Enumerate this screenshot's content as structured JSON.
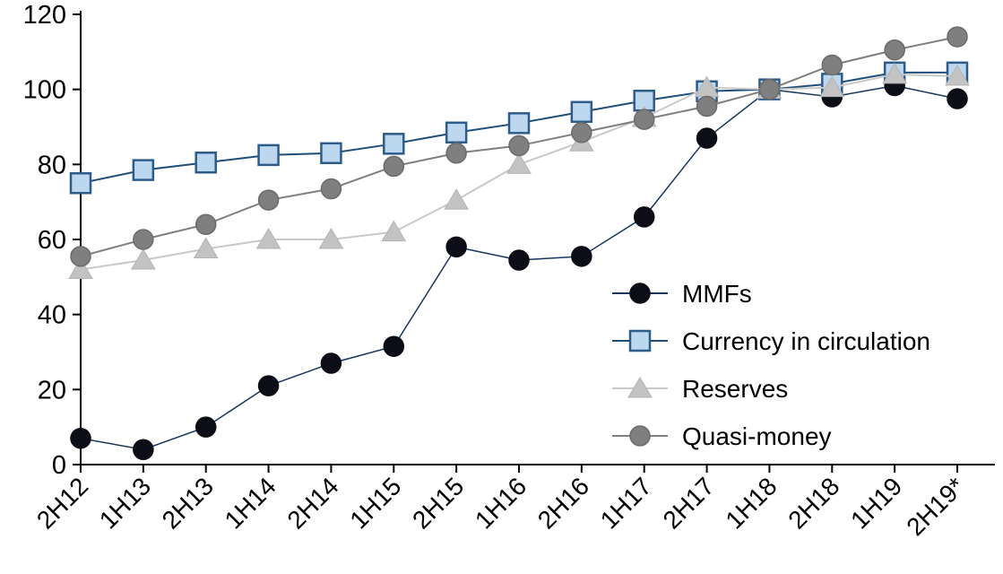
{
  "chart_data": {
    "type": "line",
    "title": "",
    "xlabel": "",
    "ylabel": "",
    "categories": [
      "2H12",
      "1H13",
      "2H13",
      "1H14",
      "2H14",
      "1H15",
      "2H15",
      "1H16",
      "2H16",
      "1H17",
      "2H17",
      "1H18",
      "2H18",
      "1H19",
      "2H19*"
    ],
    "series": [
      {
        "name": "MMFs",
        "marker": "circle",
        "line_color": "#17375e",
        "marker_fill": "#0d0d17",
        "marker_stroke": "#0d0d17",
        "values": [
          7,
          4,
          10,
          21,
          27,
          31.5,
          58,
          54.5,
          55.5,
          66,
          87,
          100,
          98,
          101,
          97.5
        ]
      },
      {
        "name": "Currency in circulation",
        "marker": "square",
        "line_color": "#1f4e79",
        "marker_fill": "#bdd7ee",
        "marker_stroke": "#2e5c8a",
        "values": [
          75,
          78.5,
          80.5,
          82.5,
          83,
          85.5,
          88.5,
          91,
          94,
          97,
          99.5,
          100,
          101.5,
          104.5,
          104.5
        ]
      },
      {
        "name": "Reserves",
        "marker": "triangle",
        "line_color": "#c9c9c9",
        "marker_fill": "#c3c3c3",
        "marker_stroke": "#b3b3b3",
        "values": [
          52,
          54.5,
          57.5,
          60,
          60,
          62,
          70.5,
          80,
          86,
          92.5,
          100.5,
          100,
          100.5,
          104,
          103.5
        ]
      },
      {
        "name": "Quasi-money",
        "marker": "circle",
        "line_color": "#7f7f7f",
        "marker_fill": "#7f7f7f",
        "marker_stroke": "#6b6b6b",
        "values": [
          55.5,
          60,
          64,
          70.5,
          73.5,
          79.5,
          83,
          85,
          88.5,
          92,
          95.5,
          100,
          106.5,
          110.5,
          114
        ]
      }
    ],
    "ylim": [
      0,
      120
    ],
    "yticks": [
      0,
      20,
      40,
      60,
      80,
      100,
      120
    ],
    "grid": false,
    "legend_position": "inside-right"
  },
  "colors": {
    "axis": "#000000",
    "background": "#ffffff"
  }
}
